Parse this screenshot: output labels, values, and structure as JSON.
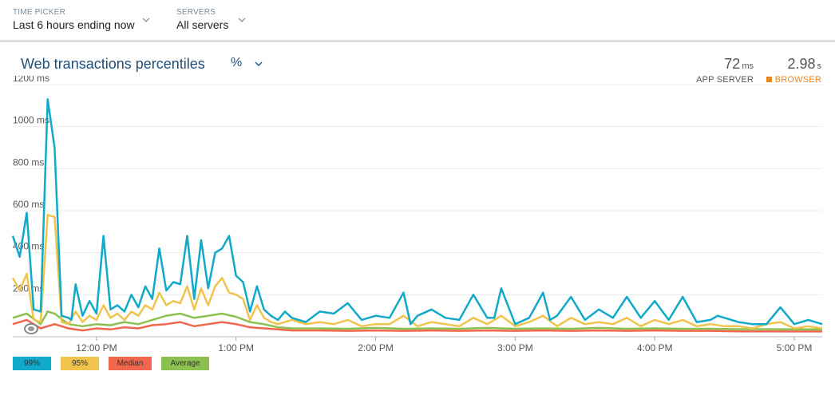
{
  "filters": {
    "time_picker": {
      "label": "TIME PICKER",
      "value": "Last 6 hours ending now"
    },
    "servers": {
      "label": "SERVERS",
      "value": "All servers"
    }
  },
  "panel": {
    "title": "Web transactions percentiles",
    "unit_toggle": "%",
    "metrics": {
      "app_server": {
        "value": "72",
        "unit": "ms",
        "label": "APP SERVER",
        "color": "#555555"
      },
      "browser": {
        "value": "2.98",
        "unit": "s",
        "label": "BROWSER",
        "color": "#e8871e"
      }
    }
  },
  "legend": [
    {
      "label": "99%",
      "color": "#11a9c9"
    },
    {
      "label": "95%",
      "color": "#f0c44c"
    },
    {
      "label": "Median",
      "color": "#f0674d"
    },
    {
      "label": "Average",
      "color": "#8cc152"
    }
  ],
  "chart_data": {
    "type": "line",
    "ylim": [
      0,
      1200
    ],
    "y_ticks": [
      "1200 ms",
      "1000 ms",
      "800 ms",
      "600 ms",
      "400 ms",
      "200 ms"
    ],
    "x_ticks": [
      "12:00 PM",
      "1:00 PM",
      "2:00 PM",
      "3:00 PM",
      "4:00 PM",
      "5:00 PM"
    ],
    "x_range_hours": [
      11.4,
      17.2
    ],
    "grid": true,
    "series": [
      {
        "name": "99%",
        "color": "#11a9c9",
        "x": [
          11.4,
          11.45,
          11.5,
          11.55,
          11.6,
          11.65,
          11.7,
          11.75,
          11.8,
          11.82,
          11.85,
          11.9,
          11.95,
          12.0,
          12.05,
          12.1,
          12.15,
          12.2,
          12.25,
          12.3,
          12.35,
          12.4,
          12.45,
          12.5,
          12.55,
          12.6,
          12.65,
          12.7,
          12.75,
          12.8,
          12.85,
          12.9,
          12.95,
          13.0,
          13.05,
          13.1,
          13.15,
          13.2,
          13.25,
          13.3,
          13.35,
          13.4,
          13.5,
          13.6,
          13.7,
          13.8,
          13.9,
          14.0,
          14.1,
          14.2,
          14.25,
          14.3,
          14.4,
          14.5,
          14.6,
          14.7,
          14.8,
          14.85,
          14.9,
          15.0,
          15.1,
          15.2,
          15.25,
          15.3,
          15.4,
          15.5,
          15.6,
          15.7,
          15.8,
          15.9,
          16.0,
          16.1,
          16.2,
          16.3,
          16.4,
          16.45,
          16.5,
          16.6,
          16.7,
          16.8,
          16.9,
          17.0,
          17.1,
          17.2
        ],
        "values": [
          480,
          380,
          590,
          130,
          120,
          1130,
          900,
          100,
          90,
          80,
          250,
          100,
          170,
          110,
          480,
          130,
          150,
          120,
          200,
          140,
          240,
          180,
          420,
          220,
          260,
          250,
          480,
          180,
          460,
          230,
          400,
          420,
          480,
          290,
          260,
          120,
          240,
          130,
          100,
          80,
          120,
          90,
          70,
          120,
          110,
          160,
          80,
          100,
          90,
          210,
          60,
          100,
          130,
          90,
          80,
          200,
          90,
          90,
          230,
          60,
          90,
          210,
          80,
          100,
          190,
          80,
          130,
          90,
          190,
          90,
          170,
          80,
          190,
          70,
          80,
          100,
          90,
          70,
          60,
          60,
          140,
          60,
          80,
          60
        ]
      },
      {
        "name": "95%",
        "color": "#f0c44c",
        "x": [
          11.4,
          11.45,
          11.5,
          11.55,
          11.6,
          11.65,
          11.7,
          11.75,
          11.8,
          11.85,
          11.9,
          11.95,
          12.0,
          12.05,
          12.1,
          12.15,
          12.2,
          12.25,
          12.3,
          12.35,
          12.4,
          12.45,
          12.5,
          12.55,
          12.6,
          12.65,
          12.7,
          12.75,
          12.8,
          12.85,
          12.9,
          12.95,
          13.0,
          13.05,
          13.1,
          13.15,
          13.2,
          13.25,
          13.3,
          13.4,
          13.5,
          13.6,
          13.7,
          13.8,
          13.9,
          14.0,
          14.1,
          14.2,
          14.3,
          14.4,
          14.5,
          14.6,
          14.7,
          14.8,
          14.9,
          15.0,
          15.1,
          15.2,
          15.3,
          15.4,
          15.5,
          15.6,
          15.7,
          15.8,
          15.9,
          16.0,
          16.1,
          16.2,
          16.3,
          16.4,
          16.5,
          16.6,
          16.7,
          16.8,
          16.9,
          17.0,
          17.1,
          17.2
        ],
        "values": [
          280,
          220,
          300,
          80,
          70,
          580,
          570,
          70,
          60,
          120,
          70,
          100,
          80,
          150,
          90,
          110,
          80,
          120,
          100,
          150,
          130,
          210,
          150,
          170,
          160,
          240,
          130,
          230,
          150,
          240,
          280,
          210,
          200,
          180,
          80,
          150,
          90,
          70,
          60,
          80,
          60,
          70,
          60,
          80,
          50,
          60,
          60,
          100,
          50,
          70,
          60,
          50,
          90,
          60,
          100,
          50,
          70,
          100,
          50,
          90,
          60,
          70,
          60,
          90,
          50,
          80,
          60,
          80,
          50,
          60,
          50,
          50,
          40,
          60,
          70,
          40,
          50,
          40
        ]
      },
      {
        "name": "Median",
        "color": "#f0674d",
        "x": [
          11.4,
          11.5,
          11.6,
          11.65,
          11.7,
          11.8,
          11.9,
          12.0,
          12.1,
          12.2,
          12.3,
          12.4,
          12.5,
          12.6,
          12.7,
          12.8,
          12.9,
          13.0,
          13.1,
          13.2,
          13.3,
          13.4,
          13.6,
          13.8,
          14.0,
          14.2,
          14.4,
          14.6,
          14.8,
          15.0,
          15.2,
          15.4,
          15.6,
          15.8,
          16.0,
          16.2,
          16.4,
          16.6,
          16.8,
          17.0,
          17.2
        ],
        "values": [
          60,
          80,
          40,
          50,
          60,
          40,
          30,
          40,
          35,
          45,
          40,
          55,
          60,
          70,
          50,
          60,
          70,
          60,
          45,
          40,
          35,
          30,
          30,
          28,
          30,
          28,
          30,
          28,
          30,
          28,
          30,
          28,
          30,
          28,
          30,
          28,
          28,
          26,
          26,
          25,
          25
        ]
      },
      {
        "name": "Average",
        "color": "#8cc152",
        "x": [
          11.4,
          11.5,
          11.6,
          11.65,
          11.7,
          11.8,
          11.9,
          12.0,
          12.1,
          12.2,
          12.3,
          12.4,
          12.5,
          12.6,
          12.7,
          12.8,
          12.9,
          13.0,
          13.1,
          13.2,
          13.3,
          13.4,
          13.6,
          13.8,
          14.0,
          14.2,
          14.4,
          14.6,
          14.8,
          15.0,
          15.2,
          15.4,
          15.6,
          15.8,
          16.0,
          16.2,
          16.4,
          16.6,
          16.8,
          17.0,
          17.2
        ],
        "values": [
          90,
          110,
          60,
          120,
          110,
          60,
          50,
          60,
          55,
          70,
          60,
          80,
          100,
          110,
          90,
          100,
          110,
          95,
          70,
          60,
          45,
          40,
          40,
          38,
          42,
          38,
          40,
          38,
          42,
          38,
          40,
          38,
          42,
          38,
          40,
          38,
          38,
          36,
          36,
          35,
          35
        ]
      }
    ]
  }
}
